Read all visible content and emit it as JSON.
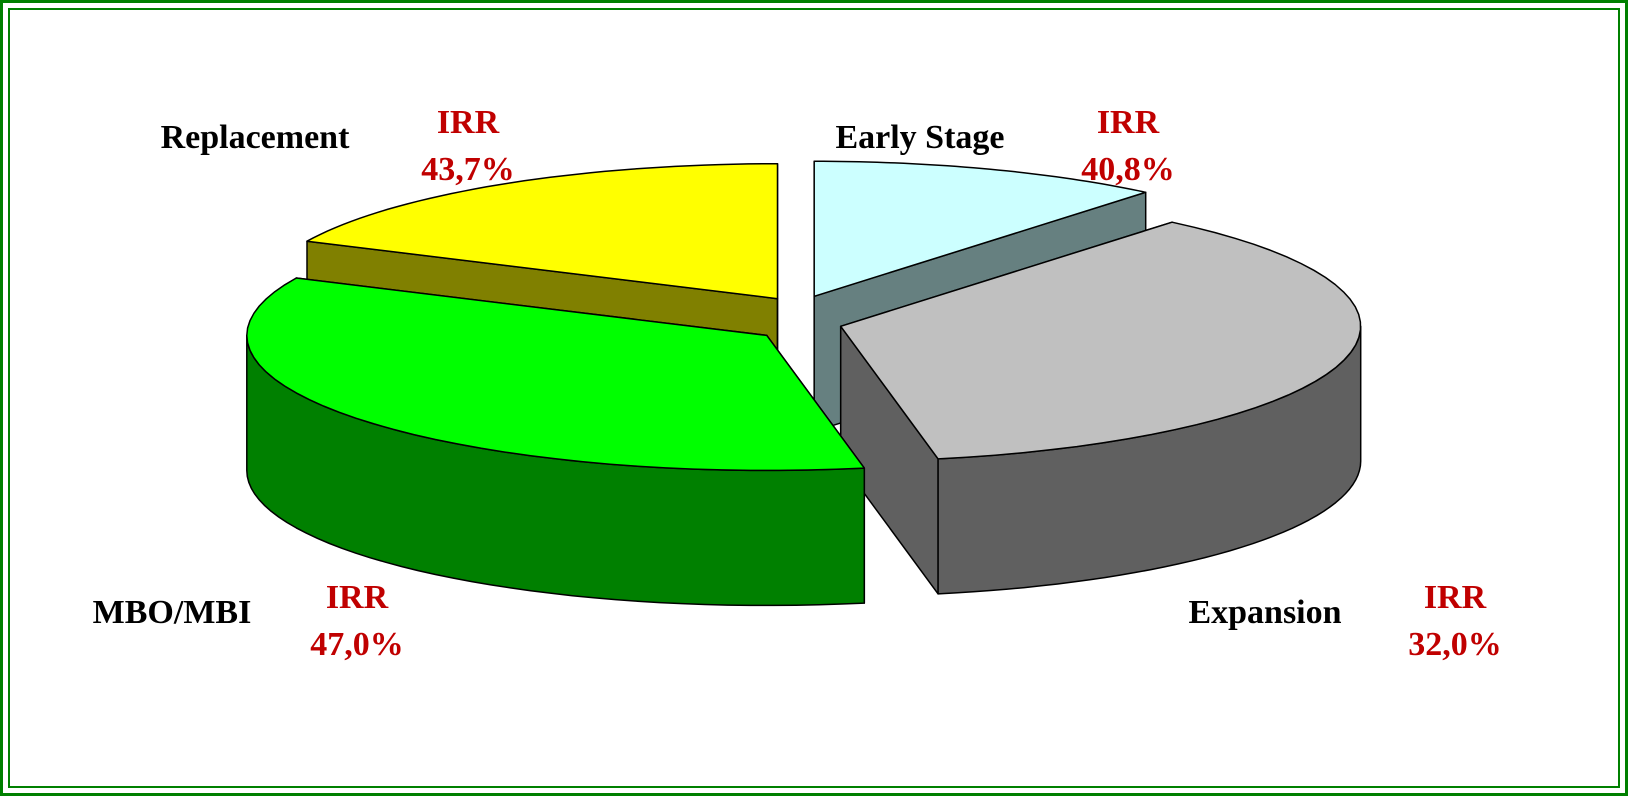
{
  "chart_data": {
    "type": "pie",
    "categories": [
      "Early Stage",
      "Expansion",
      "MBO/MBI",
      "Replacement"
    ],
    "values": [
      11,
      36,
      35,
      18
    ],
    "colors": [
      "#ccffff",
      "#c0c0c0",
      "#00ff00",
      "#ffff00"
    ],
    "side_colors": [
      "#668080",
      "#606060",
      "#008000",
      "#808000"
    ],
    "irr_title": "IRR",
    "irr_values": [
      40.8,
      32.0,
      47.0,
      43.7
    ],
    "irr_labels": [
      "40,8%",
      "32,0%",
      "47,0%",
      "43,7%"
    ]
  }
}
